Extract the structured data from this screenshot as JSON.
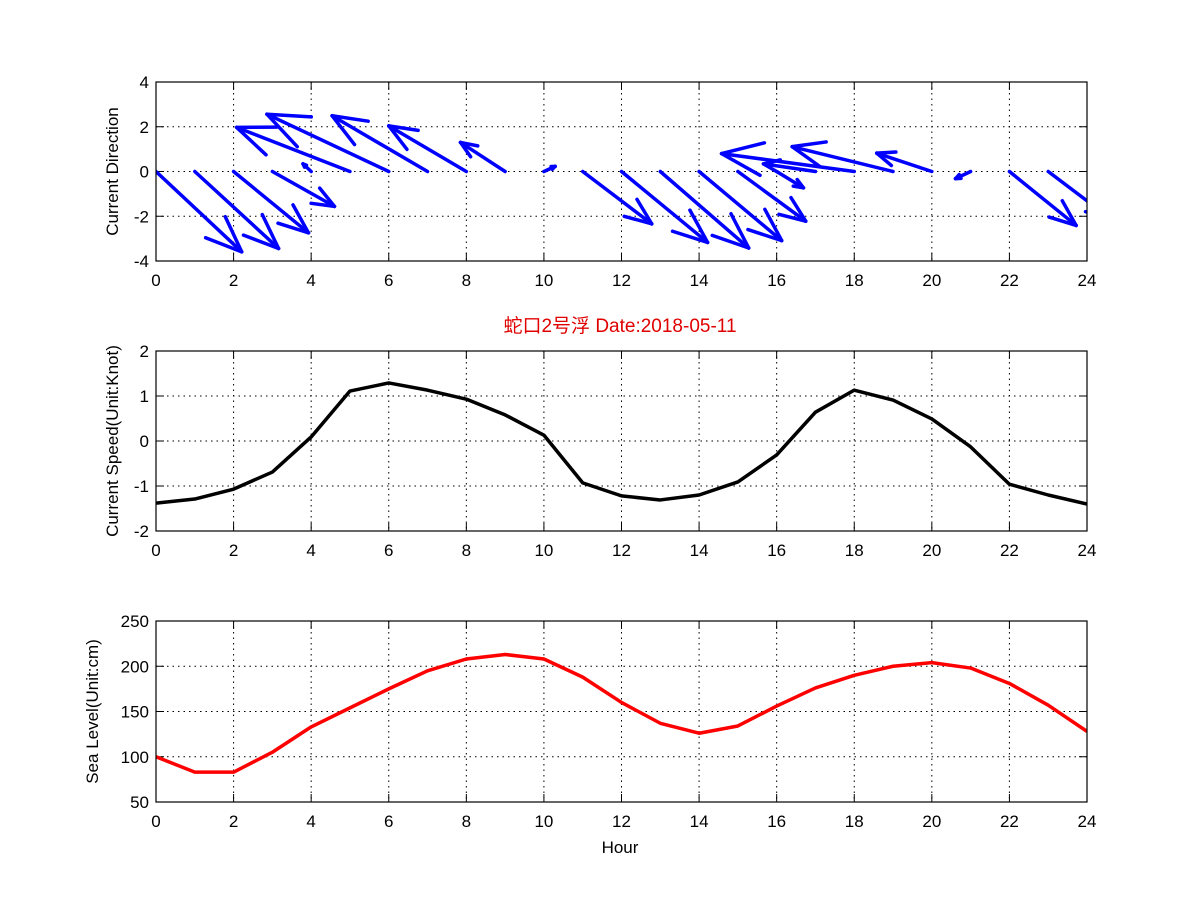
{
  "chart_data": [
    {
      "type": "quiver",
      "ylabel": "Current Direction",
      "xlim": [
        0,
        24
      ],
      "ylim": [
        -4,
        4
      ],
      "xticks": [
        0,
        2,
        4,
        6,
        8,
        10,
        12,
        14,
        16,
        18,
        20,
        22,
        24
      ],
      "yticks": [
        -4,
        -2,
        0,
        2,
        4
      ],
      "grid": true,
      "color": "#0000ff",
      "x": [
        0,
        1,
        2,
        3,
        4,
        5,
        6,
        7,
        8,
        9,
        10,
        11,
        12,
        13,
        14,
        15,
        16,
        17,
        18,
        19,
        20,
        21,
        22,
        23
      ],
      "u": [
        2.21,
        2.16,
        1.93,
        1.6,
        -0.21,
        -2.92,
        -3.14,
        -2.46,
        -2.0,
        -1.15,
        0.29,
        1.78,
        2.22,
        2.28,
        2.13,
        1.75,
        0.69,
        -1.34,
        -3.42,
        -2.6,
        -1.42,
        -0.39,
        1.72,
        1.6
      ],
      "v": [
        -3.59,
        -3.44,
        -2.74,
        -1.56,
        0.34,
        1.97,
        2.56,
        2.49,
        2.04,
        1.3,
        0.23,
        -2.34,
        -3.17,
        -3.42,
        -3.09,
        -2.22,
        -0.73,
        0.34,
        0.8,
        1.11,
        0.82,
        -0.32,
        -2.41,
        -2.1
      ]
    },
    {
      "type": "line",
      "title": "蛇口2号浮   Date:2018-05-11",
      "ylabel": "Current Speed(Unit:Knot)",
      "xlim": [
        0,
        24
      ],
      "ylim": [
        -2,
        2
      ],
      "xticks": [
        0,
        2,
        4,
        6,
        8,
        10,
        12,
        14,
        16,
        18,
        20,
        22,
        24
      ],
      "yticks": [
        -2,
        -1,
        0,
        1,
        2
      ],
      "grid": true,
      "color": "#000000",
      "x": [
        0,
        1,
        2,
        3,
        4,
        5,
        6,
        7,
        8,
        9,
        10,
        11,
        12,
        13,
        14,
        15,
        16,
        17,
        18,
        19,
        20,
        21,
        22,
        23,
        24
      ],
      "y": [
        -1.38,
        -1.29,
        -1.07,
        -0.69,
        0.09,
        1.11,
        1.29,
        1.13,
        0.93,
        0.58,
        0.13,
        -0.93,
        -1.22,
        -1.31,
        -1.2,
        -0.91,
        -0.31,
        0.64,
        1.13,
        0.91,
        0.49,
        -0.13,
        -0.96,
        -1.2,
        -1.4
      ]
    },
    {
      "type": "line",
      "xlabel": "Hour",
      "ylabel": "Sea Level(Unit:cm)",
      "xlim": [
        0,
        24
      ],
      "ylim": [
        50,
        250
      ],
      "xticks": [
        0,
        2,
        4,
        6,
        8,
        10,
        12,
        14,
        16,
        18,
        20,
        22,
        24
      ],
      "yticks": [
        50,
        100,
        150,
        200,
        250
      ],
      "grid": true,
      "color": "#ff0000",
      "x": [
        0,
        1,
        2,
        3,
        4,
        5,
        6,
        7,
        8,
        9,
        10,
        11,
        12,
        13,
        14,
        15,
        16,
        17,
        18,
        19,
        20,
        21,
        22,
        23,
        24
      ],
      "y": [
        100,
        83,
        83,
        105,
        133,
        154,
        175,
        195,
        208,
        213,
        208,
        188,
        160,
        137,
        126,
        134,
        156,
        176,
        190,
        200,
        204,
        198,
        181,
        157,
        128
      ]
    }
  ]
}
